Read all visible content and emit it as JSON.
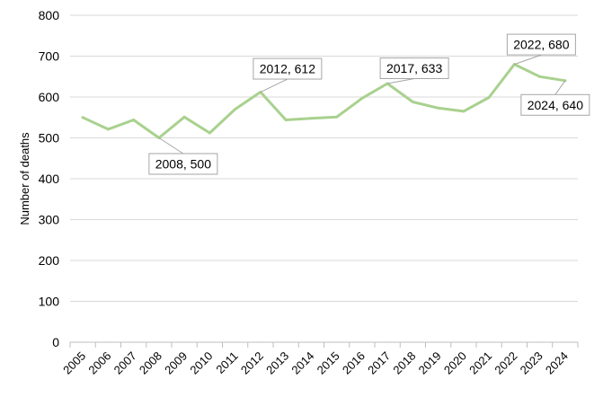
{
  "chart_data": {
    "type": "line",
    "title": "",
    "xlabel": "",
    "ylabel": "Number of deaths",
    "ylim": [
      0,
      800
    ],
    "yticks": [
      0,
      100,
      200,
      300,
      400,
      500,
      600,
      700,
      800
    ],
    "grid": true,
    "legend": "none",
    "line_color": "#a9d18e",
    "categories": [
      "2005",
      "2006",
      "2007",
      "2008",
      "2009",
      "2010",
      "2011",
      "2012",
      "2013",
      "2014",
      "2015",
      "2016",
      "2017",
      "2018",
      "2019",
      "2020",
      "2021",
      "2022",
      "2023",
      "2024"
    ],
    "series": [
      {
        "values": [
          550,
          521,
          544,
          500,
          551,
          512,
          570,
          612,
          544,
          548,
          551,
          597,
          633,
          588,
          573,
          565,
          599,
          680,
          650,
          640
        ]
      }
    ],
    "annotations": [
      {
        "x": "2008",
        "y": 500,
        "text": "2008, 500"
      },
      {
        "x": "2012",
        "y": 612,
        "text": "2012, 612"
      },
      {
        "x": "2017",
        "y": 633,
        "text": "2017, 633"
      },
      {
        "x": "2022",
        "y": 680,
        "text": "2022, 680"
      },
      {
        "x": "2024",
        "y": 640,
        "text": "2024, 640"
      }
    ]
  }
}
